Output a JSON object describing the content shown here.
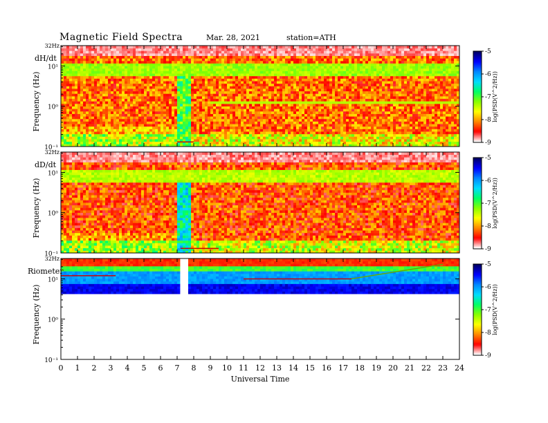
{
  "header": {
    "title": "Magnetic  Field  Spectra",
    "date": "Mar. 28, 2021",
    "station": "station=ATH"
  },
  "colors": {
    "colorbar_stops": [
      "#000066",
      "#0000ff",
      "#0088ff",
      "#00ddff",
      "#00ff66",
      "#88ff00",
      "#ffff00",
      "#ff8800",
      "#ff0000",
      "#ffffff"
    ]
  },
  "chart_data": [
    {
      "type": "heatmap",
      "panel_label": "dH/dt",
      "top_label": "32Hz",
      "ylabel": "Frequency  (Hz)",
      "yscale": "log",
      "ylim": [
        0.1,
        32
      ],
      "y_tick_labels": [
        "10⁻¹",
        "10⁰",
        "10¹"
      ],
      "xlim": [
        0,
        24
      ],
      "colorbar": {
        "label": "log(PSD(V^2/Hz))",
        "ticks": [
          "-5",
          "-6",
          "-7",
          "-8",
          "-9"
        ],
        "range": [
          -9,
          -5
        ]
      },
      "features": {
        "background_level": -8.2,
        "low_freq_level": -7.6,
        "top_band_level": -8.8,
        "band_10hz_level": -7.3,
        "line_1hz": {
          "x_start": 9,
          "x_end": 24,
          "freq": 1.2,
          "level": -7.4
        },
        "disturbance": {
          "x_start": 7.0,
          "x_end": 7.8,
          "level": -7.0
        },
        "red_trace": {
          "x_start": 7.0,
          "x_end": 8.0,
          "freq": 0.13
        }
      }
    },
    {
      "type": "heatmap",
      "panel_label": "dD/dt",
      "top_label": "32Hz",
      "ylabel": "Frequency  (Hz)",
      "yscale": "log",
      "ylim": [
        0.1,
        32
      ],
      "y_tick_labels": [
        "10⁻¹",
        "10⁰",
        "10¹"
      ],
      "xlim": [
        0,
        24
      ],
      "colorbar": {
        "label": "log(PSD(V^2/Hz))",
        "ticks": [
          "-5",
          "-6",
          "-7",
          "-8",
          "-9"
        ],
        "range": [
          -9,
          -5
        ]
      },
      "features": {
        "background_level": -8.3,
        "low_freq_level": -7.5,
        "top_band_level": -8.8,
        "band_10hz_level": -7.4,
        "disturbance": {
          "x_start": 7.0,
          "x_end": 7.8,
          "level": -6.5
        },
        "red_trace": {
          "x_start": 7.2,
          "x_end": 9.5,
          "freq": 0.13
        }
      }
    },
    {
      "type": "heatmap",
      "panel_label": "Riometer",
      "top_label": "32Hz",
      "ylabel": "Frequency  (Hz)",
      "yscale": "log",
      "ylim": [
        0.1,
        32
      ],
      "y_tick_labels": [
        "10⁻¹",
        "10⁰",
        "10¹"
      ],
      "xlim": [
        0,
        24
      ],
      "colorbar": {
        "label": "log(PSD(V^2/Hz))",
        "ticks": [
          "-5",
          "-6",
          "-7",
          "-8",
          "-9"
        ],
        "range": [
          -9,
          -5
        ]
      },
      "features": {
        "data_gap": {
          "x_start": 7.1,
          "x_end": 7.7
        },
        "red_trace_1": {
          "x_start": 0,
          "x_end": 3.3,
          "freq": 12
        },
        "red_trace_2": {
          "x_start": 11,
          "x_end": 17.5,
          "freq": 10
        },
        "rising_trace": {
          "x_start": 17.5,
          "x_end": 23,
          "freq_start": 10,
          "freq_end": 23
        }
      }
    }
  ],
  "xaxis": {
    "label": "Universal  Time",
    "tick_labels": [
      "0",
      "1",
      "2",
      "3",
      "4",
      "5",
      "6",
      "7",
      "8",
      "9",
      "10",
      "11",
      "12",
      "13",
      "14",
      "15",
      "16",
      "17",
      "18",
      "19",
      "20",
      "21",
      "22",
      "23",
      "24"
    ]
  }
}
